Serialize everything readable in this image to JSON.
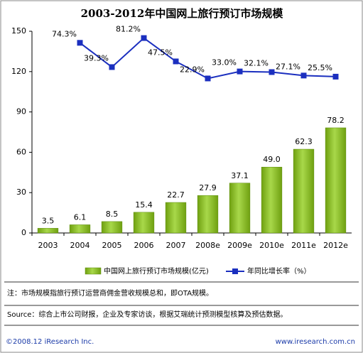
{
  "chart_data": {
    "type": "bar_line",
    "title": "2003-2012年中国网上旅行预订市场规模",
    "categories": [
      "2003",
      "2004",
      "2005",
      "2006",
      "2007",
      "2008e",
      "2009e",
      "2010e",
      "2011e",
      "2012e"
    ],
    "series": [
      {
        "name": "中国网上旅行预订市场规模(亿元)",
        "type": "bar",
        "color": "#8cc21a",
        "values": [
          3.5,
          6.1,
          8.5,
          15.4,
          22.7,
          27.9,
          37.1,
          49.0,
          62.3,
          78.2
        ],
        "value_labels": [
          "3.5",
          "6.1",
          "8.5",
          "15.4",
          "22.7",
          "27.9",
          "37.1",
          "49.0",
          "62.3",
          "78.2"
        ]
      },
      {
        "name": "年同比增长率（%）",
        "type": "line",
        "axis": "y2",
        "color": "#1b2fbf",
        "values": [
          null,
          74.3,
          39.3,
          81.2,
          47.5,
          22.9,
          33.0,
          32.1,
          27.1,
          25.5
        ],
        "value_labels": [
          null,
          "74.3%",
          "39.3%",
          "81.2%",
          "47.5%",
          "22.9%",
          "33.0%",
          "32.1%",
          "27.1%",
          "25.5%"
        ]
      }
    ],
    "ylim": [
      0,
      150
    ],
    "yticks": [
      0,
      30,
      60,
      90,
      120,
      150
    ],
    "y2lim": [
      -200,
      91
    ],
    "note": "注：市场规模指旅行预订运营商佣金营收规模总和，即OTA规模。",
    "source": "Source：综合上市公司财报，企业及专家访谈，根据艾瑞统计预测模型核算及预估数据。",
    "copyright": "©2008.12 iResearch Inc.",
    "website": "www.iresearch.com.cn"
  }
}
